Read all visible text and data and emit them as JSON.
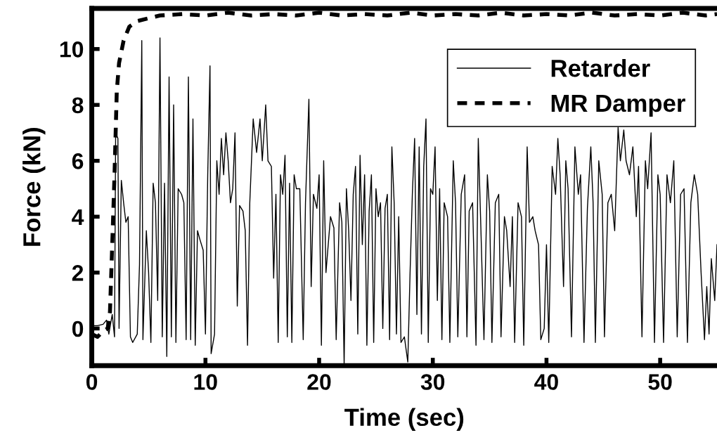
{
  "chart_data": {
    "type": "line",
    "xlabel": "Time (sec)",
    "ylabel": "Force (kN)",
    "xlim": [
      0,
      55
    ],
    "ylim": [
      -1.33,
      11.45
    ],
    "xticks": [
      0,
      10,
      20,
      30,
      40,
      50
    ],
    "yticks": [
      0,
      2,
      4,
      6,
      8,
      10
    ],
    "legend": "top right",
    "series": [
      {
        "name": "Retarder",
        "color": "#000000",
        "line_style": "solid",
        "x": [
          0,
          0.5,
          1.0,
          1.3,
          1.5,
          1.8,
          2.0,
          2.1,
          2.3,
          2.4,
          2.6,
          2.8,
          3.0,
          3.2,
          3.4,
          3.6,
          4.0,
          4.2,
          4.4,
          4.5,
          4.8,
          5.0,
          5.2,
          5.4,
          5.6,
          5.8,
          6.0,
          6.2,
          6.4,
          6.6,
          6.8,
          7.0,
          7.2,
          7.4,
          7.6,
          7.9,
          8.1,
          8.3,
          8.5,
          8.7,
          8.9,
          9.1,
          9.3,
          9.5,
          9.8,
          10.0,
          10.2,
          10.4,
          10.5,
          10.8,
          11.0,
          11.2,
          11.4,
          11.6,
          11.8,
          12.0,
          12.2,
          12.4,
          12.6,
          12.8,
          13.0,
          13.3,
          13.5,
          13.7,
          13.9,
          14.2,
          14.5,
          14.8,
          15.0,
          15.3,
          15.5,
          15.8,
          16.0,
          16.2,
          16.4,
          16.6,
          16.8,
          17.0,
          17.2,
          17.4,
          17.6,
          17.8,
          18.0,
          18.3,
          18.6,
          18.8,
          19.1,
          19.3,
          19.5,
          19.8,
          20.0,
          20.2,
          20.4,
          20.6,
          21.0,
          21.3,
          21.5,
          21.8,
          22.0,
          22.2,
          22.4,
          22.6,
          22.8,
          23.0,
          23.2,
          23.4,
          23.6,
          23.8,
          24.0,
          24.2,
          24.4,
          24.6,
          24.8,
          25.0,
          25.2,
          25.4,
          25.6,
          25.8,
          26.0,
          26.2,
          26.4,
          26.6,
          26.8,
          27.0,
          27.2,
          27.5,
          27.8,
          28.0,
          28.2,
          28.4,
          28.6,
          28.8,
          29.0,
          29.2,
          29.4,
          29.6,
          29.8,
          30.0,
          30.2,
          30.4,
          30.6,
          30.8,
          31.0,
          31.3,
          31.5,
          31.8,
          32.0,
          32.2,
          32.5,
          32.8,
          33.0,
          33.2,
          33.5,
          33.8,
          34.0,
          34.2,
          34.5,
          34.8,
          35.0,
          35.2,
          35.5,
          35.8,
          36.0,
          36.3,
          36.5,
          36.8,
          37.0,
          37.2,
          37.5,
          37.8,
          38.0,
          38.3,
          38.5,
          38.8,
          39.0,
          39.3,
          39.5,
          39.8,
          40.0,
          40.2,
          40.5,
          40.8,
          41.0,
          41.2,
          41.5,
          41.7,
          41.9,
          42.2,
          42.5,
          42.8,
          43.0,
          43.3,
          43.6,
          43.9,
          44.1,
          44.3,
          44.6,
          44.9,
          45.1,
          45.4,
          45.7,
          46.0,
          46.3,
          46.5,
          46.8,
          47.0,
          47.3,
          47.6,
          47.9,
          48.1,
          48.4,
          48.7,
          48.9,
          49.2,
          49.5,
          49.8,
          50.0,
          50.3,
          50.6,
          50.9,
          51.2,
          51.5,
          51.8,
          52.1,
          52.4,
          52.7,
          53.0,
          53.3,
          53.6,
          53.9,
          54.1,
          54.3,
          54.5,
          54.8,
          55.0
        ],
        "values": [
          0.1,
          0.1,
          0.15,
          0.3,
          -0.2,
          0.5,
          -0.3,
          7.0,
          6.8,
          0.0,
          5.3,
          4.5,
          3.8,
          4.0,
          -0.3,
          -0.5,
          -0.2,
          2.3,
          10.3,
          -0.4,
          3.5,
          2.0,
          -0.5,
          5.2,
          4.5,
          1.0,
          10.4,
          -0.3,
          5.2,
          -1.0,
          9.0,
          -0.3,
          8.0,
          -0.5,
          5.0,
          4.8,
          4.5,
          -0.4,
          9.0,
          -0.4,
          7.5,
          -0.6,
          3.5,
          3.2,
          2.8,
          -0.2,
          5.5,
          9.4,
          -0.9,
          -0.2,
          6.0,
          4.8,
          6.8,
          5.5,
          7.0,
          6.0,
          4.5,
          5.0,
          7.0,
          0.8,
          4.4,
          4.2,
          3.5,
          -0.6,
          4.5,
          7.5,
          6.3,
          7.5,
          6.0,
          8.0,
          6.0,
          5.8,
          1.8,
          4.8,
          -0.5,
          5.5,
          4.8,
          6.2,
          -0.3,
          5.2,
          -0.5,
          5.5,
          5.0,
          5.0,
          -0.4,
          4.5,
          8.2,
          1.5,
          4.8,
          4.3,
          5.5,
          -0.6,
          6.0,
          2.0,
          4.0,
          3.6,
          -0.4,
          4.5,
          3.8,
          -1.3,
          5.0,
          3.5,
          1.0,
          4.8,
          5.8,
          -0.2,
          6.2,
          3.0,
          5.5,
          -0.6,
          4.2,
          5.5,
          -0.5,
          5.0,
          4.0,
          4.5,
          0.0,
          4.3,
          4.8,
          -0.4,
          6.5,
          4.5,
          -0.2,
          4.0,
          -0.5,
          -0.3,
          -1.2,
          2.0,
          4.8,
          6.8,
          0.5,
          6.5,
          -0.2,
          5.8,
          7.5,
          -0.5,
          5.0,
          4.8,
          6.5,
          1.0,
          5.0,
          -0.4,
          4.5,
          4.0,
          -0.5,
          6.0,
          4.5,
          -0.3,
          4.8,
          5.5,
          -0.3,
          4.2,
          4.5,
          -0.6,
          6.8,
          4.0,
          -0.4,
          5.5,
          4.2,
          -0.5,
          4.5,
          4.8,
          -0.3,
          4.0,
          3.5,
          1.5,
          4.0,
          -0.5,
          4.5,
          4.0,
          -0.6,
          6.5,
          3.8,
          4.0,
          3.5,
          3.0,
          -0.4,
          0.0,
          3.0,
          -0.5,
          5.8,
          4.8,
          6.8,
          5.5,
          1.5,
          6.0,
          5.0,
          -0.3,
          6.5,
          4.8,
          5.5,
          -0.5,
          4.3,
          6.5,
          4.5,
          -0.5,
          6.0,
          4.8,
          -0.3,
          4.5,
          4.8,
          3.5,
          7.2,
          6.0,
          7.1,
          6.0,
          5.5,
          6.5,
          4.0,
          5.8,
          -0.3,
          6.0,
          5.0,
          7.0,
          -0.5,
          5.5,
          4.8,
          -0.5,
          5.5,
          4.5,
          6.0,
          -0.3,
          4.8,
          5.0,
          -0.5,
          4.5,
          5.5,
          4.8,
          2.0,
          -0.4,
          1.5,
          -0.2,
          2.5,
          1.0,
          3.0
        ]
      },
      {
        "name": "MR Damper",
        "color": "#000000",
        "line_style": "dashed",
        "x": [
          0,
          0.5,
          1.0,
          1.4,
          1.6,
          1.8,
          2.0,
          2.2,
          2.4,
          2.8,
          3.3,
          4.0,
          5.0,
          6,
          8,
          10,
          12,
          14,
          16,
          18,
          20,
          22,
          24,
          26,
          28,
          30,
          32,
          34,
          36,
          38,
          40,
          42,
          44,
          46,
          48,
          50,
          52,
          54,
          55
        ],
        "values": [
          -0.2,
          -0.3,
          -0.1,
          0.0,
          0.6,
          3.0,
          5.5,
          8.5,
          9.5,
          10.3,
          10.8,
          11.0,
          11.1,
          11.2,
          11.25,
          11.2,
          11.3,
          11.2,
          11.25,
          11.2,
          11.3,
          11.2,
          11.25,
          11.2,
          11.3,
          11.2,
          11.25,
          11.2,
          11.3,
          11.2,
          11.25,
          11.2,
          11.3,
          11.2,
          11.25,
          11.2,
          11.3,
          11.2,
          11.25
        ]
      }
    ]
  }
}
